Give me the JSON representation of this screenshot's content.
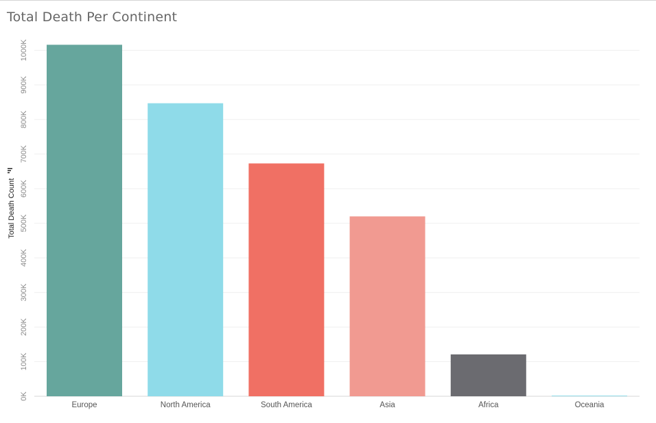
{
  "page": {
    "title": "Total Death Per Continent"
  },
  "colors": {
    "grid": "#efefef",
    "axis": "#d6d6d6"
  },
  "chart_data": {
    "type": "bar",
    "title": "Total Death Per Continent",
    "xlabel": "",
    "ylabel": "Total Death Count",
    "ylim": [
      0,
      1080000
    ],
    "yticks": [
      0,
      100000,
      200000,
      300000,
      400000,
      500000,
      600000,
      700000,
      800000,
      900000,
      1000000
    ],
    "ytick_labels": [
      "0K",
      "100K",
      "200K",
      "300K",
      "400K",
      "500K",
      "600K",
      "700K",
      "800K",
      "900K",
      "1000K"
    ],
    "grid": true,
    "legend": "none",
    "categories": [
      "Europe",
      "North America",
      "South America",
      "Asia",
      "Africa",
      "Oceania"
    ],
    "values": [
      1016000,
      847000,
      673000,
      520000,
      121000,
      1000
    ],
    "bar_colors": [
      "#66a69d",
      "#8fdbe9",
      "#f07064",
      "#f19a91",
      "#6b6b70",
      "#8fdbe9"
    ]
  }
}
